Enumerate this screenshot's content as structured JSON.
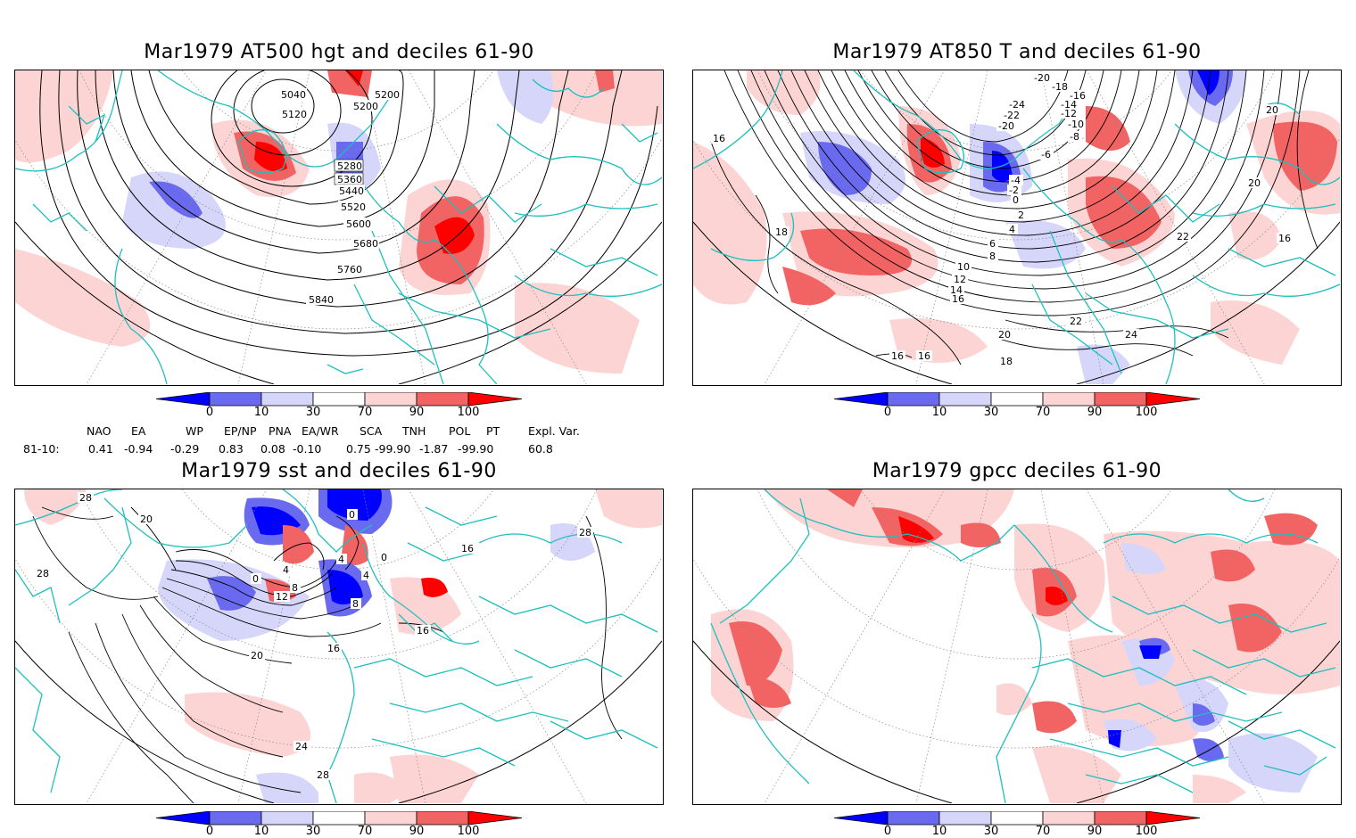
{
  "panels": [
    {
      "title": "Mar1979 AT500 hgt and deciles 61-90"
    },
    {
      "title": "Mar1979 AT850 T and deciles 61-90"
    },
    {
      "title": "Mar1979 sst and deciles 61-90"
    },
    {
      "title": "Mar1979 gpcc deciles 61-90"
    }
  ],
  "contour_labels": {
    "hgt": [
      "5040",
      "5120",
      "5200",
      "5200",
      "5280",
      "5360",
      "5440",
      "5520",
      "5600",
      "5680",
      "5760",
      "5840"
    ],
    "t850": [
      "-20",
      "-18",
      "-16",
      "-24",
      "-22",
      "-20",
      "-14",
      "-12",
      "-10",
      "-8",
      "-6",
      "-4",
      "-2",
      "0",
      "2",
      "4",
      "6",
      "8",
      "10",
      "12",
      "14",
      "16",
      "18",
      "20",
      "22",
      "24",
      "20",
      "22",
      "18",
      "16",
      "16",
      "20",
      "16",
      "16"
    ],
    "sst": [
      "28",
      "20",
      "28",
      "28",
      "0",
      "0",
      "4",
      "4",
      "0",
      "4",
      "8",
      "12",
      "8",
      "16",
      "16",
      "20",
      "24",
      "28",
      "16"
    ]
  },
  "colorbar": {
    "ticks": [
      "0",
      "10",
      "30",
      "70",
      "90",
      "100"
    ],
    "colors": [
      "#0000ff",
      "#6a6af0",
      "#d6d6fa",
      "#ffffff",
      "#fdd4d4",
      "#f26464",
      "#ff0000"
    ]
  },
  "indices": {
    "headers": [
      "NAO",
      "EA",
      "WP",
      "EP/NP",
      "PNA",
      "EA/WR",
      "SCA",
      "TNH",
      "POL",
      "PT",
      "Expl. Var."
    ],
    "row_label": "81-10:",
    "values": [
      "0.41",
      "-0.94",
      "-0.29",
      "0.83",
      "0.08",
      "-0.10",
      "0.75",
      "-99.90",
      "-1.87",
      "-99.90",
      "60.8"
    ]
  },
  "legend_colors": {
    "coast": "#1fbfbf",
    "contour": "#000000",
    "grid": "#888888"
  }
}
